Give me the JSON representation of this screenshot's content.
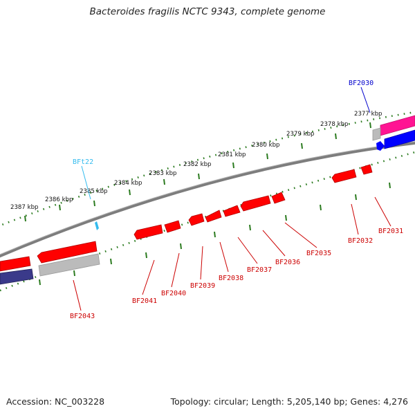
{
  "title": "Bacteroides fragilis NCTC 9343, complete genome",
  "footer": {
    "accession": "Accession: NC_003228",
    "summary": "Topology: circular; Length: 5,205,140 bp; Genes: 4,276"
  },
  "colors": {
    "backbone": "#808080",
    "tick": "#2a7a1e",
    "gene_red": "#ff0000",
    "gene_pink": "#ff1493",
    "gene_blue": "#0000ff",
    "gene_grey": "#bbbbbb",
    "gene_navy": "#3a3a8a",
    "label_red": "#cc0000",
    "label_blue": "#0000cc",
    "label_cyan": "#33bbee"
  },
  "kbp_labels": [
    "2377 kbp",
    "2378 kbp",
    "2379 kbp",
    "2380 kbp",
    "2381 kbp",
    "2382 kbp",
    "2383 kbp",
    "2384 kbp",
    "2385 kbp",
    "2386 kbp",
    "2387 kbp"
  ],
  "gene_labels": {
    "bf2030": "BF2030",
    "bft22": "BFt22",
    "bf2031": "BF2031",
    "bf2032": "BF2032",
    "bf2035": "BF2035",
    "bf2036": "BF2036",
    "bf2037": "BF2037",
    "bf2038": "BF2038",
    "bf2039": "BF2039",
    "bf2040": "BF2040",
    "bf2041": "BF2041",
    "bf2043": "BF2043"
  }
}
